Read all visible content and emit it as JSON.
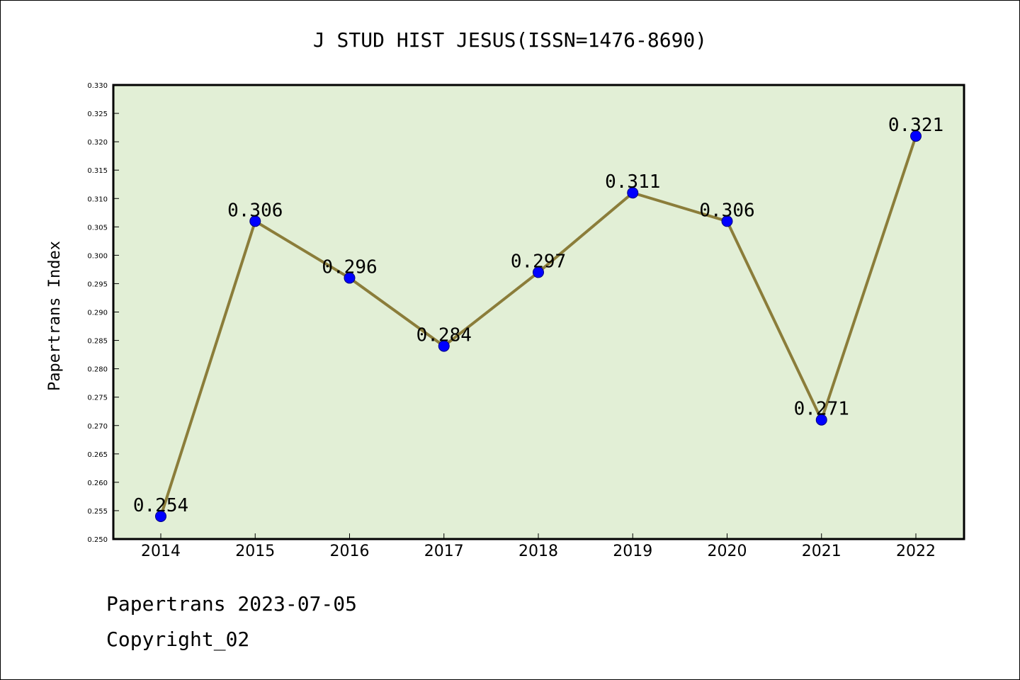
{
  "colors": {
    "plot_background": "#e2efd6",
    "line": "#8b7d3a",
    "marker_fill": "#0000ff",
    "marker_stroke": "#000080",
    "axis": "#000000"
  },
  "footer": {
    "date_line": "Papertrans 2023-07-05",
    "copyright_line": "Copyright_02"
  },
  "chart_data": {
    "type": "line",
    "title": "J STUD HIST JESUS(ISSN=1476-8690)",
    "xlabel": "",
    "ylabel": "Papertrans Index",
    "categories": [
      "2014",
      "2015",
      "2016",
      "2017",
      "2018",
      "2019",
      "2020",
      "2021",
      "2022"
    ],
    "series": [
      {
        "values": [
          0.254,
          0.306,
          0.296,
          0.284,
          0.297,
          0.311,
          0.306,
          0.271,
          0.321
        ],
        "labels": [
          "0.254",
          "0.306",
          "0.296",
          "0.284",
          "0.297",
          "0.311",
          "0.306",
          "0.271",
          "0.321"
        ]
      }
    ],
    "ylim": [
      0.25,
      0.33
    ],
    "yticks": [
      "0.250",
      "0.255",
      "0.260",
      "0.265",
      "0.270",
      "0.275",
      "0.280",
      "0.285",
      "0.290",
      "0.295",
      "0.300",
      "0.305",
      "0.310",
      "0.315",
      "0.320",
      "0.325",
      "0.330"
    ],
    "grid": false,
    "legend": "none"
  }
}
